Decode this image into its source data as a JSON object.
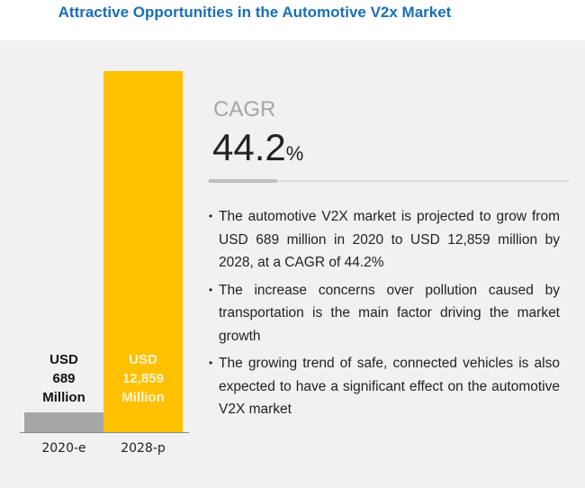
{
  "title": "Attractive Opportunities in the Automotive V2x Market",
  "chart_data": {
    "type": "bar",
    "title": "Attractive Opportunities in the Automotive V2x Market",
    "categories": [
      "2020-e",
      "2028-p"
    ],
    "values": [
      689,
      12859
    ],
    "unit": "USD Million",
    "data_labels": [
      {
        "line1": "USD",
        "line2": "689",
        "line3": "Million"
      },
      {
        "line1": "USD",
        "line2": "12,859",
        "line3": "Million"
      }
    ],
    "colors": [
      "#a6a6a6",
      "#ffc000"
    ],
    "xlabel": "",
    "ylabel": "",
    "ylim": [
      0,
      12859
    ],
    "grid": false,
    "legend": "none"
  },
  "cagr": {
    "label": "CAGR",
    "value": "44.2",
    "suffix": "%"
  },
  "bullets": [
    "The automotive V2X market is projected to grow from USD 689 million in 2020 to USD 12,859 million by 2028, at a CAGR of 44.2%",
    "The increase concerns over pollution caused by transportation is the main factor driving the market growth",
    "The growing trend of safe, connected vehicles is also expected to have a significant effect on the automotive V2X market"
  ],
  "colors": {
    "title": "#1a6fb4",
    "background": "#f1f1f1",
    "bar_2020": "#a6a6a6",
    "bar_2028": "#ffc000"
  }
}
